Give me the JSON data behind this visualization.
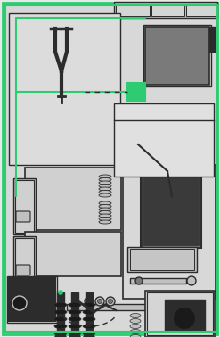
{
  "bg_color": "#e8e8e8",
  "dark_gray": "#2c2c2c",
  "med_gray": "#7a7a7a",
  "light_gray": "#c0c0c0",
  "green_box": "#2ecc71",
  "green_line": "#2ecc71",
  "figsize": [
    2.47,
    3.78
  ],
  "dpi": 100
}
